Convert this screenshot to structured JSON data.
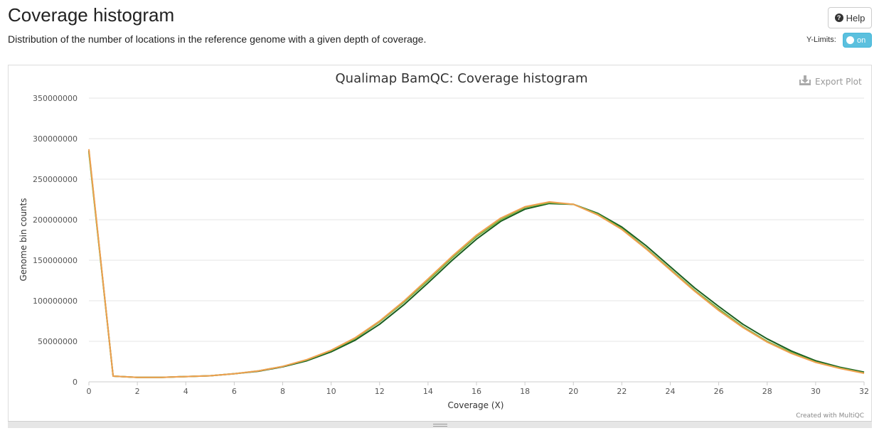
{
  "header": {
    "title": "Coverage histogram",
    "description": "Distribution of the number of locations in the reference genome with a given depth of coverage.",
    "help_label": "Help",
    "ylimits_label": "Y-Limits:",
    "toggle_label": "on"
  },
  "plot": {
    "export_label": "Export Plot",
    "credit": "Created with MultiQC"
  },
  "chart_data": {
    "type": "line",
    "title": "Qualimap BamQC: Coverage histogram",
    "xlabel": "Coverage (X)",
    "ylabel": "Genome bin counts",
    "xlim": [
      0,
      32
    ],
    "ylim": [
      0,
      350000000
    ],
    "x_ticks": [
      0,
      2,
      4,
      6,
      8,
      10,
      12,
      14,
      16,
      18,
      20,
      22,
      24,
      26,
      28,
      30,
      32
    ],
    "y_ticks": [
      0,
      50000000,
      100000000,
      150000000,
      200000000,
      250000000,
      300000000,
      350000000
    ],
    "grid": true,
    "x": [
      0,
      1,
      2,
      3,
      4,
      5,
      6,
      7,
      8,
      9,
      10,
      11,
      12,
      13,
      14,
      15,
      16,
      17,
      18,
      19,
      20,
      21,
      22,
      23,
      24,
      25,
      26,
      27,
      28,
      29,
      30,
      31,
      32
    ],
    "series": [
      {
        "color": "#1a5e20",
        "values": [
          285000000,
          7000000,
          5500000,
          5500000,
          6500000,
          7500000,
          10000000,
          13000000,
          18500000,
          26000000,
          37000000,
          51500000,
          71000000,
          95000000,
          122000000,
          150000000,
          176000000,
          198000000,
          213000000,
          220000000,
          219000000,
          208000000,
          191000000,
          168000000,
          142000000,
          116000000,
          93000000,
          71000000,
          53000000,
          38000000,
          26000000,
          18000000,
          12000000
        ]
      },
      {
        "color": "#7cb342",
        "values": [
          283000000,
          7000000,
          5500000,
          5500000,
          6500000,
          7500000,
          10000000,
          13500000,
          19000000,
          27000000,
          38500000,
          53500000,
          74000000,
          98000000,
          125000000,
          153000000,
          179000000,
          200000000,
          215000000,
          221000000,
          219000000,
          207000000,
          189000000,
          165000000,
          139000000,
          113000000,
          90000000,
          68000000,
          50000000,
          36000000,
          24500000,
          17000000,
          11000000
        ]
      },
      {
        "color": "#f0a050",
        "values": [
          287000000,
          7000000,
          5500000,
          5500000,
          6500000,
          7500000,
          10000000,
          13500000,
          19000000,
          27500000,
          39000000,
          54500000,
          75000000,
          99500000,
          127000000,
          155000000,
          181000000,
          202000000,
          216000000,
          222000000,
          219000000,
          206000000,
          188000000,
          164000000,
          138000000,
          112000000,
          88000000,
          67000000,
          49000000,
          35000000,
          24000000,
          16500000,
          10500000
        ]
      }
    ]
  }
}
